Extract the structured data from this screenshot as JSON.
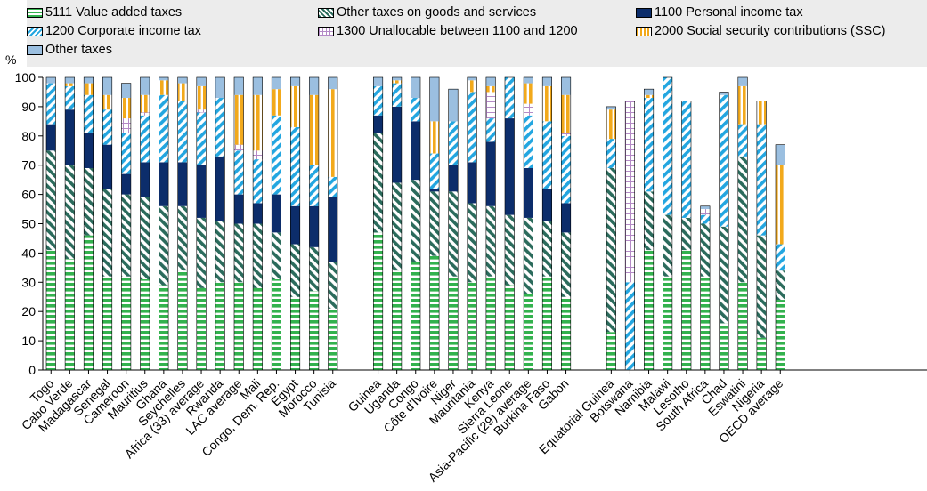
{
  "chart_data": {
    "type": "bar",
    "stacked": true,
    "ylabel": "%",
    "ylim": [
      0,
      100
    ],
    "yticks": [
      0,
      10,
      20,
      30,
      40,
      50,
      60,
      70,
      80,
      90,
      100
    ],
    "grid": false,
    "legend": [
      {
        "label": "5111 Value added taxes",
        "color": "#33b24e",
        "pattern": "hstripe",
        "icon": "hstripe-swatch"
      },
      {
        "label": "Other taxes on goods and services",
        "color": "#2b6b5c",
        "pattern": "diag-rev",
        "icon": "diag-swatch"
      },
      {
        "label": "1100 Personal income tax",
        "color": "#0c2d6b",
        "pattern": "solid",
        "icon": "solid-swatch"
      },
      {
        "label": "1200 Corporate income tax",
        "color": "#23a6e0",
        "pattern": "diag",
        "icon": "diag-swatch"
      },
      {
        "label": "1300 Unallocable between 1100 and 1200",
        "color": "#b48ac6",
        "pattern": "grid",
        "icon": "grid-swatch"
      },
      {
        "label": "2000 Social security contributions (SSC)",
        "color": "#f2a91b",
        "pattern": "vstripe",
        "icon": "vstripe-swatch"
      },
      {
        "label": "Other taxes",
        "color": "#9bbfe0",
        "pattern": "solid",
        "icon": "solid-swatch"
      }
    ],
    "groups": [
      {
        "categories": [
          "Togo",
          "Cabo Verde",
          "Madagascar",
          "Senegal",
          "Cameroon",
          "Mauritius",
          "Ghana",
          "Seychelles",
          "Africa (33) average",
          "Rwanda",
          "LAC average",
          "Mali",
          "Congo, Dem. Rep.",
          "Egypt",
          "Morocco",
          "Tunisia"
        ]
      },
      {
        "categories": [
          "Guinea",
          "Uganda",
          "Congo",
          "Côte d'Ivoire",
          "Niger",
          "Mauritania",
          "Kenya",
          "Sierra Leone",
          "Asia-Pacific (29) average",
          "Burkina Faso",
          "Gabon"
        ]
      },
      {
        "categories": [
          "Equatorial Guinea",
          "Botswana",
          "Namibia",
          "Malawi",
          "Lesotho",
          "South Africa",
          "Chad",
          "Eswatini",
          "Nigeria",
          "OECD average"
        ]
      }
    ],
    "series": [
      {
        "name": "5111 Value added taxes",
        "values": [
          41,
          38,
          46,
          32,
          32,
          31,
          29,
          34,
          28,
          30,
          30,
          28,
          31,
          25,
          27,
          21,
          47,
          34,
          37,
          39,
          32,
          30,
          32,
          29,
          26,
          32,
          25,
          13,
          0,
          41,
          32,
          41,
          32,
          16,
          30,
          11,
          24
        ]
      },
      {
        "name": "Other taxes on goods and services",
        "values": [
          34,
          32,
          23,
          30,
          28,
          28,
          27,
          22,
          24,
          21,
          20,
          22,
          16,
          18,
          15,
          16,
          34,
          30,
          28,
          22,
          29,
          27,
          24,
          24,
          26,
          19,
          22,
          56,
          0,
          20,
          21,
          11,
          18,
          33,
          43,
          35,
          10
        ]
      },
      {
        "name": "1100 Personal income tax",
        "values": [
          9,
          19,
          12,
          15,
          7,
          12,
          15,
          15,
          18,
          22,
          10,
          7,
          13,
          13,
          14,
          22,
          6,
          26,
          20,
          1,
          9,
          14,
          22,
          33,
          17,
          11,
          10,
          0,
          0,
          0,
          0,
          0,
          0,
          0,
          0,
          0,
          0
        ]
      },
      {
        "name": "1200 Corporate income tax",
        "values": [
          14,
          8,
          13,
          12,
          14,
          16,
          23,
          21,
          18,
          20,
          15,
          15,
          27,
          27,
          14,
          7,
          10,
          8,
          8,
          12,
          15,
          24,
          8,
          14,
          18,
          23,
          23,
          10,
          30,
          32,
          47,
          40,
          3,
          45,
          11,
          38,
          9
        ]
      },
      {
        "name": "1300 Unallocable between 1100 and 1200",
        "values": [
          0,
          0,
          0,
          0,
          5,
          1,
          0,
          0,
          1,
          0,
          2,
          3,
          0,
          0,
          0,
          0,
          0,
          0,
          0,
          0,
          0,
          0,
          9,
          0,
          4,
          0,
          1,
          0,
          62,
          0,
          0,
          0,
          2,
          0,
          0,
          0,
          0
        ]
      },
      {
        "name": "2000 Social security contributions (SSC)",
        "values": [
          0,
          1,
          4,
          5,
          7,
          6,
          5,
          6,
          8,
          0,
          17,
          19,
          9,
          14,
          24,
          30,
          0,
          1,
          0,
          11,
          0,
          4,
          2,
          0,
          7,
          12,
          13,
          10,
          0,
          1,
          0,
          0,
          0,
          0,
          13,
          8,
          27
        ]
      },
      {
        "name": "Other taxes",
        "values": [
          2,
          2,
          2,
          6,
          5,
          6,
          1,
          2,
          3,
          7,
          6,
          6,
          4,
          3,
          6,
          4,
          3,
          1,
          7,
          15,
          11,
          1,
          3,
          0,
          2,
          3,
          6,
          1,
          0,
          2,
          0,
          0,
          1,
          1,
          3,
          0,
          7
        ]
      }
    ]
  }
}
